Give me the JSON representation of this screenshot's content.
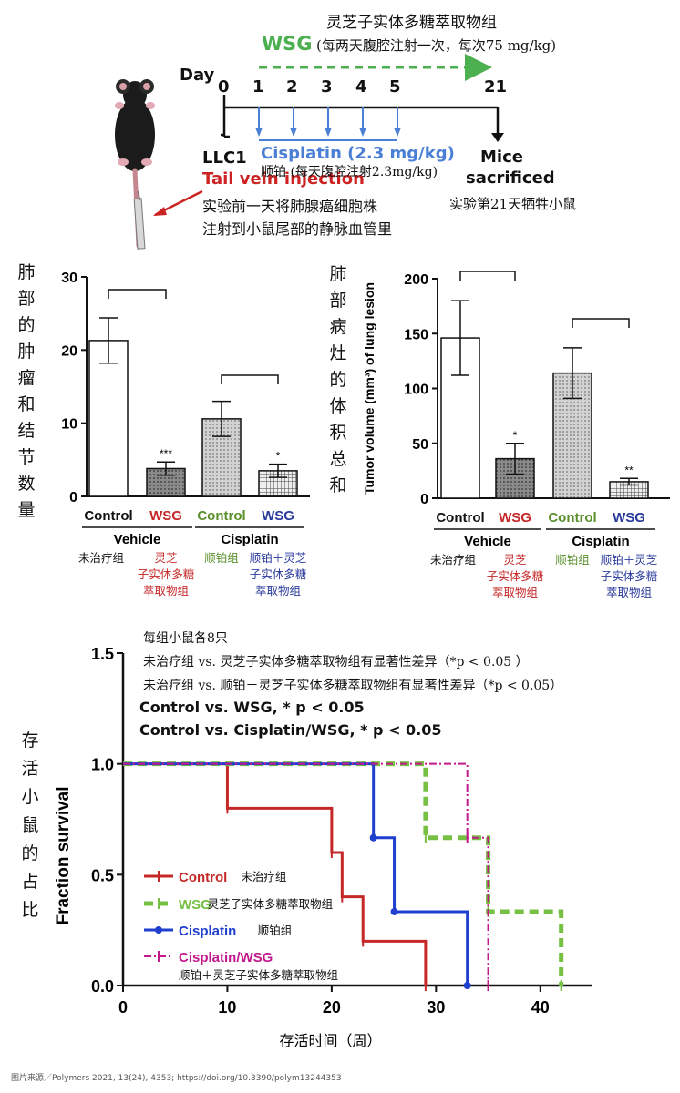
{
  "timeline": {
    "wsg_cn_title": "灵芝子实体多糖萃取物组",
    "wsg_label": "WSG",
    "wsg_cn_dose": "(每两天腹腔注射一次，每次75 mg/kg)",
    "day_label": "Day",
    "days": [
      "0",
      "1",
      "2",
      "3",
      "4",
      "5",
      "21"
    ],
    "llc1": "LLC1",
    "tail_vein": "Tail vein injection",
    "tail_vein_cn_1": "实验前一天将肺腺癌细胞株",
    "tail_vein_cn_2": "注射到小鼠尾部的静脉血管里",
    "cisplatin": "Cisplatin (2.3 mg/kg)",
    "cisplatin_cn": "顺铂 (每天腹腔注射2.3mg/kg)",
    "mice_1": "Mice",
    "mice_2": "sacrificed",
    "mice_cn": "实验第21天牺牲小鼠",
    "colors": {
      "wsg": "#4caf50",
      "cisplatin": "#4a7fd6",
      "tail": "#cc2222"
    }
  },
  "chart_data": [
    {
      "type": "bar",
      "title": "",
      "ylabel_cn": [
        "肺",
        "部",
        "的",
        "肿",
        "瘤",
        "和",
        "结",
        "节",
        "数",
        "量"
      ],
      "ylim": [
        0,
        30
      ],
      "yticks": [
        "0",
        "10",
        "20",
        "30"
      ],
      "categories": [
        "Control",
        "WSG",
        "Control",
        "WSG"
      ],
      "category_colors": [
        "#111111",
        "#c62828",
        "#5b8f2c",
        "#2a3a9c"
      ],
      "categories_cn": [
        "未治疗组",
        "灵芝\n子实体多糖\n萃取物组",
        "顺铂组",
        "顺铂＋灵芝\n子实体多糖\n萃取物组"
      ],
      "groups": [
        "Vehicle",
        "Cisplatin"
      ],
      "values": [
        21.3,
        3.8,
        10.6,
        3.5
      ],
      "errors": [
        3.1,
        0.9,
        2.4,
        0.9
      ],
      "significance": [
        "",
        "***",
        "",
        "*"
      ],
      "fills": [
        "white",
        "dots",
        "dots-light",
        "grid"
      ]
    },
    {
      "type": "bar",
      "title": "",
      "ylabel": "Tumor volume (mm³) of lung lesion",
      "ylabel_cn": [
        "肺",
        "部",
        "病",
        "灶",
        "的",
        "体",
        "积",
        "总",
        "和"
      ],
      "ylim": [
        0,
        200
      ],
      "yticks": [
        "0",
        "50",
        "100",
        "150",
        "200"
      ],
      "categories": [
        "Control",
        "WSG",
        "Control",
        "WSG"
      ],
      "category_colors": [
        "#111111",
        "#c62828",
        "#5b8f2c",
        "#2a3a9c"
      ],
      "categories_cn": [
        "未治疗组",
        "灵芝\n子实体多糖\n萃取物组",
        "顺铂组",
        "顺铂＋灵芝\n子实体多糖\n萃取物组"
      ],
      "groups": [
        "Vehicle",
        "Cisplatin"
      ],
      "values": [
        146,
        36,
        114,
        15
      ],
      "errors": [
        34,
        14,
        23,
        3
      ],
      "significance": [
        "",
        "*",
        "",
        "**"
      ],
      "fills": [
        "white",
        "dots",
        "dots-light",
        "grid"
      ]
    },
    {
      "type": "line",
      "step": true,
      "title": "",
      "notes": [
        "每组小鼠各8只",
        "未治疗组 vs. 灵芝子实体多糖萃取物组有显著性差异（*p < 0.05 ）",
        "未治疗组 vs. 顺铂＋灵芝子实体多糖萃取物组有显著性差异（*p < 0.05）"
      ],
      "stats_1": "Control vs. WSG, * p < 0.05",
      "stats_2": "Control vs. Cisplatin/WSG, * p < 0.05",
      "ylabel": "Fraction survival",
      "ylabel_cn": [
        "存",
        "活",
        "小",
        "鼠",
        "的",
        "占",
        "比"
      ],
      "xlabel": "存活时间（周）",
      "xlim": [
        0,
        45
      ],
      "ylim": [
        0,
        1.5
      ],
      "xticks": [
        "0",
        "10",
        "20",
        "30",
        "40"
      ],
      "yticks": [
        "0.0",
        "0.5",
        "1.0",
        "1.5"
      ],
      "legend_position": "bottom-left",
      "series": [
        {
          "name": "Control",
          "name_cn": "未治疗组",
          "color": "#c62828",
          "dash": "solid",
          "marker": "tick",
          "x": [
            0,
            10,
            20,
            21,
            23,
            29
          ],
          "y": [
            1.0,
            0.8,
            0.6,
            0.4,
            0.2,
            0.0
          ]
        },
        {
          "name": "WSG",
          "name_cn": "灵芝子实体多糖萃取物组",
          "color": "#76c043",
          "dash": "dashed",
          "marker": "tick",
          "x": [
            0,
            29,
            35,
            42
          ],
          "y": [
            1.0,
            0.667,
            0.333,
            0.0
          ]
        },
        {
          "name": "Cisplatin",
          "name_cn": "顺铂组",
          "color": "#1f3fcf",
          "dash": "solid",
          "marker": "dot",
          "x": [
            0,
            24,
            26,
            33
          ],
          "y": [
            1.0,
            0.667,
            0.333,
            0.0
          ]
        },
        {
          "name": "Cisplatin/WSG",
          "name_cn": "顺铂＋灵芝子实体多糖萃取物组",
          "color": "#c2188c",
          "dash": "dashdot",
          "marker": "tick",
          "x": [
            0,
            33,
            35
          ],
          "y": [
            1.0,
            0.667,
            0.0
          ]
        }
      ]
    }
  ],
  "source": "图片来源／Polymers 2021, 13(24), 4353; https://doi.org/10.3390/polym13244353"
}
